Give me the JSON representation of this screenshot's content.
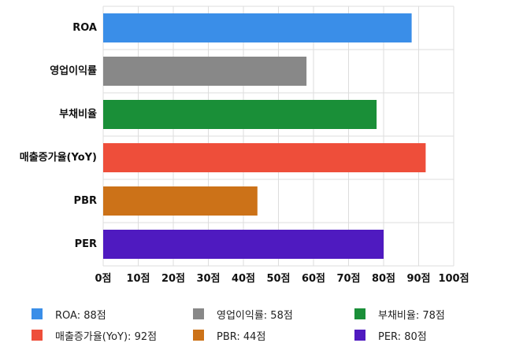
{
  "chart_data": {
    "type": "bar",
    "orientation": "horizontal",
    "categories": [
      "ROA",
      "영업이익률",
      "부채비율",
      "매출증가율(YoY)",
      "PBR",
      "PER"
    ],
    "values": [
      88,
      58,
      78,
      92,
      44,
      80
    ],
    "colors": [
      "#3a8ee8",
      "#888888",
      "#1a8f38",
      "#ee4e3a",
      "#cc7218",
      "#4f1ac0"
    ],
    "xlim": [
      0,
      100
    ],
    "x_ticks": [
      0,
      10,
      20,
      30,
      40,
      50,
      60,
      70,
      80,
      90,
      100
    ],
    "x_tick_labels": [
      "0점",
      "10점",
      "20점",
      "30점",
      "40점",
      "50점",
      "60점",
      "70점",
      "80점",
      "90점",
      "100점"
    ],
    "grid": true,
    "legend_position": "bottom",
    "legend": [
      {
        "label": "ROA: 88점",
        "color": "#3a8ee8"
      },
      {
        "label": "영업이익률: 58점",
        "color": "#888888"
      },
      {
        "label": "부채비율: 78점",
        "color": "#1a8f38"
      },
      {
        "label": "매출증가율(YoY): 92점",
        "color": "#ee4e3a"
      },
      {
        "label": "PBR: 44점",
        "color": "#cc7218"
      },
      {
        "label": "PER: 80점",
        "color": "#4f1ac0"
      }
    ]
  }
}
